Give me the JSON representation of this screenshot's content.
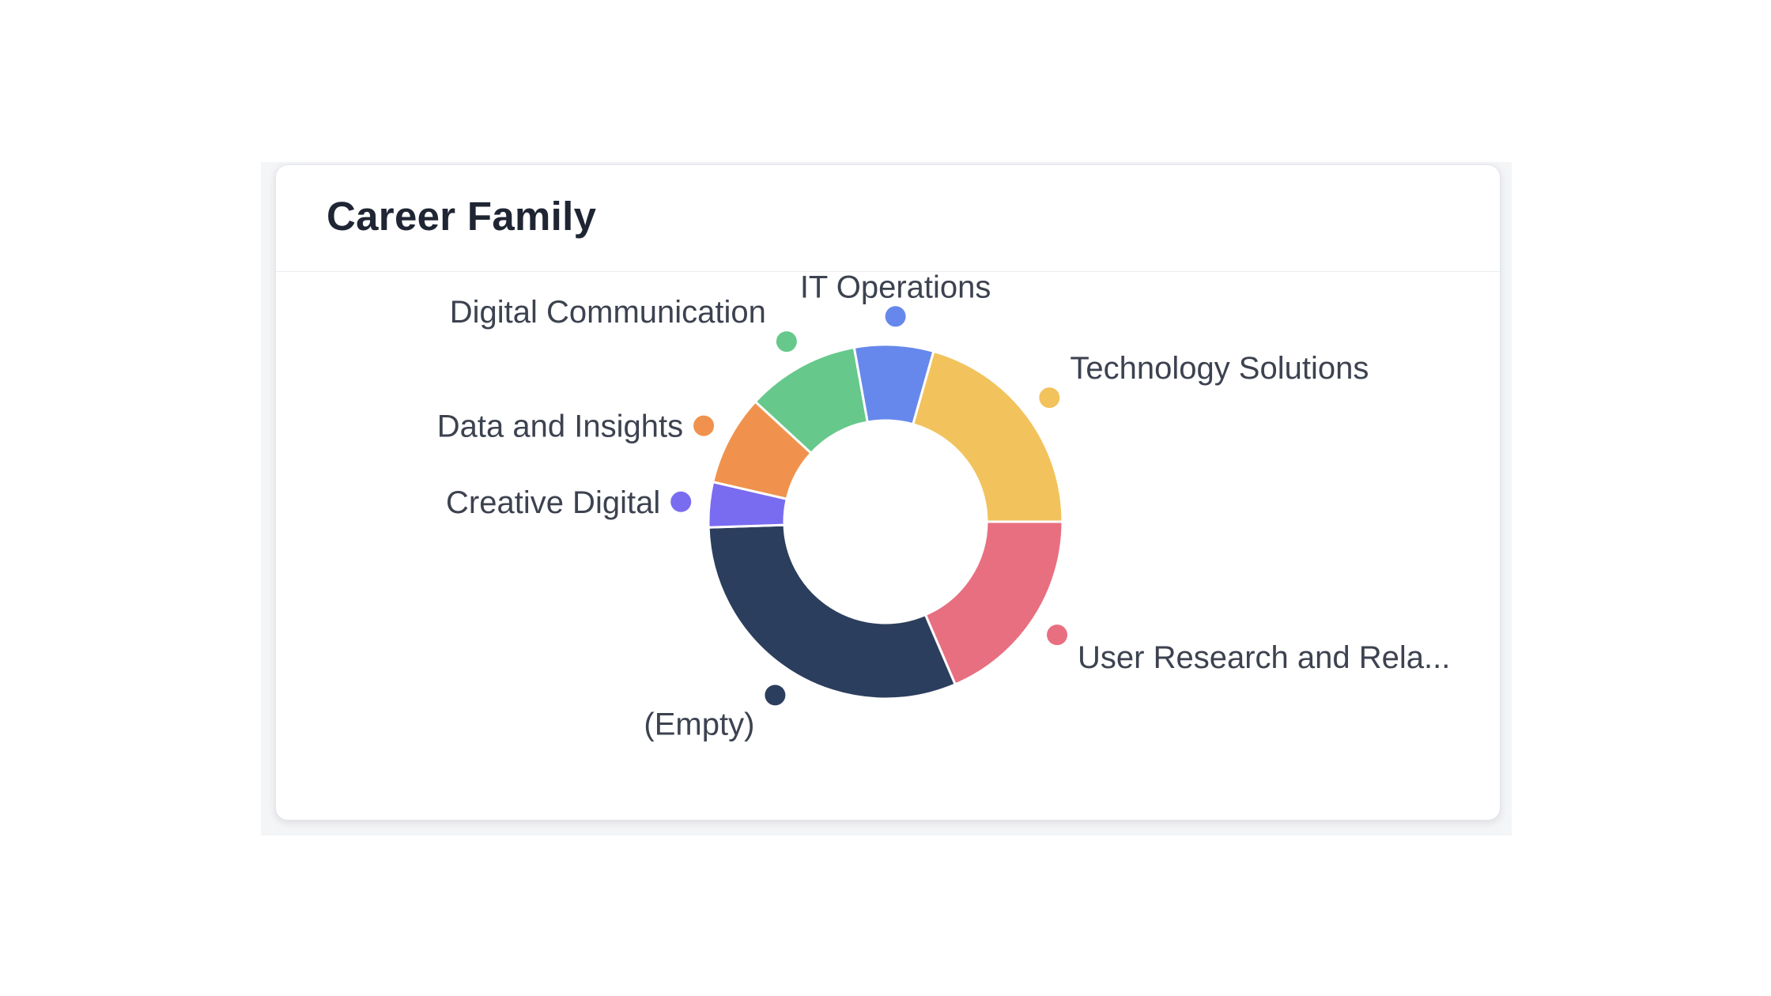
{
  "card": {
    "title": "Career Family"
  },
  "chart_data": {
    "type": "pie",
    "variant": "donut",
    "title": "Career Family",
    "legend": "none (leader-style labels around the ring)",
    "categories": [
      "User Research and Rela...",
      "(Empty)",
      "Creative Digital",
      "Data and Insights",
      "Digital Communication",
      "IT Operations",
      "Technology Solutions"
    ],
    "values": [
      18,
      30,
      4,
      8,
      10,
      7,
      20
    ],
    "colors": [
      "#e86f80",
      "#2c3e5d",
      "#7a6cf0",
      "#f0924d",
      "#66c88b",
      "#6688ec",
      "#f2c35c"
    ]
  }
}
